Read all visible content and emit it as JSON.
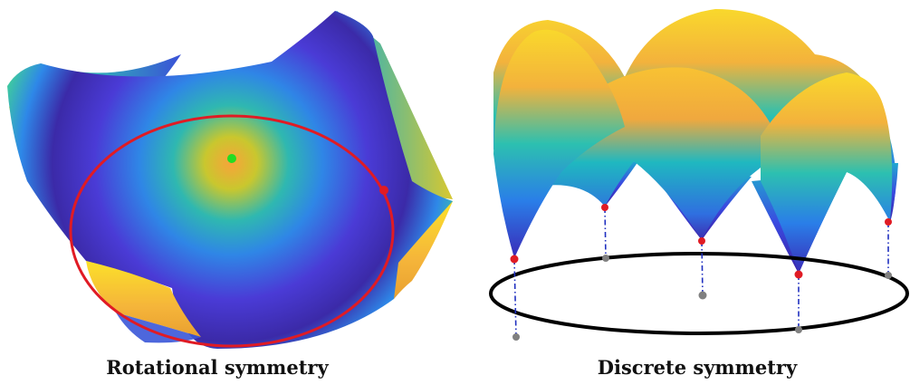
{
  "captions": {
    "left": "Rotational symmetry",
    "right": "Discrete symmetry"
  },
  "colors": {
    "colormap": [
      "#3b1fa8",
      "#4046d8",
      "#2f86e6",
      "#1eb8c7",
      "#46c87e",
      "#c9c72e",
      "#f5b53a",
      "#fbe62a"
    ],
    "ring_left": "#e01b24",
    "center_point": "#22dd22",
    "minima_points": "#e01b24",
    "base_ring": "#000000",
    "drop_lines": "#2030c0",
    "base_points": "#808080"
  },
  "panels": {
    "left": {
      "surface": "mexican-hat potential",
      "marked_points": [
        "maximum",
        "point-on-minimum-ring"
      ]
    },
    "right": {
      "surface": "potential with discrete minima",
      "minima_count": 5
    }
  }
}
